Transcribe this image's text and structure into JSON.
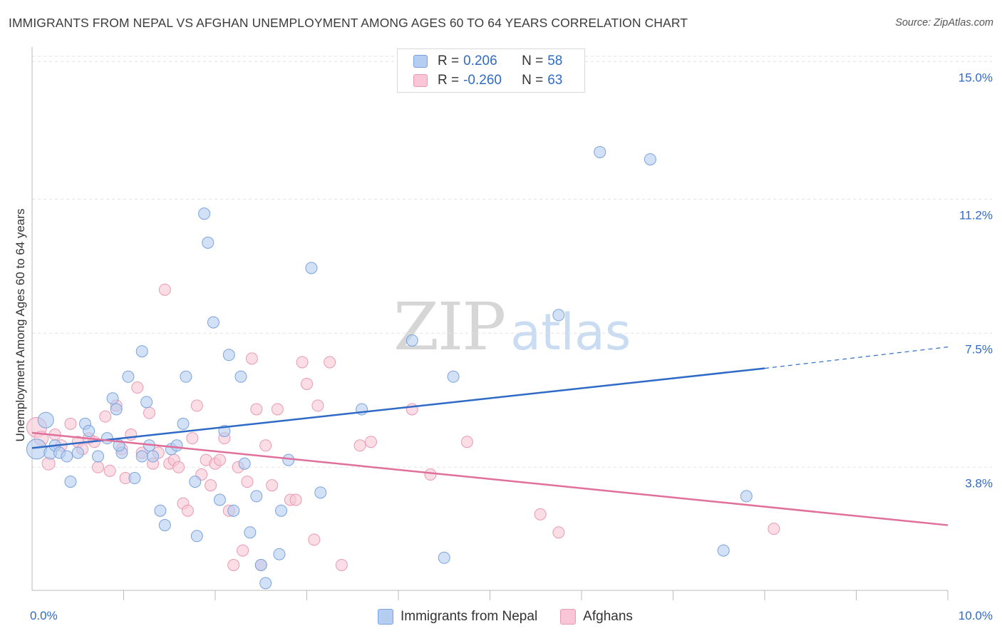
{
  "title": "IMMIGRANTS FROM NEPAL VS AFGHAN UNEMPLOYMENT AMONG AGES 60 TO 64 YEARS CORRELATION CHART",
  "source": "Source: ZipAtlas.com",
  "watermark": {
    "zip": "ZIP",
    "atlas": "atlas"
  },
  "legend_top": [
    {
      "r_label": "R =",
      "r_value": "0.206",
      "n_label": "N =",
      "n_value": "58"
    },
    {
      "r_label": "R =",
      "r_value": "-0.260",
      "n_label": "N =",
      "n_value": "63"
    }
  ],
  "legend_bottom": [
    "Immigrants from Nepal",
    "Afghans"
  ],
  "colors": {
    "nepal_fill": "#b4cdf0",
    "nepal_stroke": "#7aa3dd",
    "nepal_line": "#2f6bc6",
    "afghan_fill": "#f8c6d6",
    "afghan_stroke": "#e89ab4",
    "afghan_line": "#e0709a",
    "tick_label": "#2f6bc6",
    "grid": "#e3e3e3"
  },
  "chart_data": {
    "type": "scatter",
    "title": "IMMIGRANTS FROM NEPAL VS AFGHAN UNEMPLOYMENT AMONG AGES 60 TO 64 YEARS CORRELATION CHART",
    "xlabel": "",
    "ylabel": "Unemployment Among Ages 60 to 64 years",
    "xlim": [
      0,
      10
    ],
    "ylim": [
      0.4,
      15.4
    ],
    "x_tick_labels": [
      {
        "value": 0,
        "label": "0.0%"
      },
      {
        "value": 10,
        "label": "10.0%"
      }
    ],
    "y_ticks": [
      {
        "value": 3.8,
        "label": "3.8%"
      },
      {
        "value": 7.5,
        "label": "7.5%"
      },
      {
        "value": 11.2,
        "label": "11.2%"
      },
      {
        "value": 15.0,
        "label": "15.0%"
      }
    ],
    "x_minor_ticks": [
      1,
      2,
      3,
      4,
      5,
      6,
      7,
      8,
      9,
      10
    ],
    "series": [
      {
        "name": "Immigrants from Nepal",
        "r": 0.206,
        "n": 58,
        "trend": {
          "x0": 0,
          "y0": 4.33,
          "x1": 8,
          "y1": 6.53,
          "dash_to_x": 10,
          "dash_to_y": 7.12
        },
        "points": [
          [
            0.05,
            4.3,
            14
          ],
          [
            0.15,
            5.1,
            11
          ],
          [
            0.2,
            4.2,
            9
          ],
          [
            0.25,
            4.4,
            8
          ],
          [
            0.3,
            4.2,
            8
          ],
          [
            0.38,
            4.1,
            8
          ],
          [
            0.42,
            3.4,
            8
          ],
          [
            0.5,
            4.2,
            8
          ],
          [
            0.58,
            5.0,
            8
          ],
          [
            0.62,
            4.8,
            8
          ],
          [
            0.72,
            4.1,
            8
          ],
          [
            0.82,
            4.6,
            8
          ],
          [
            0.88,
            5.7,
            8
          ],
          [
            0.92,
            5.4,
            8
          ],
          [
            0.98,
            4.2,
            8
          ],
          [
            1.05,
            6.3,
            8
          ],
          [
            1.12,
            3.5,
            8
          ],
          [
            1.2,
            7.0,
            8
          ],
          [
            1.25,
            5.6,
            8
          ],
          [
            1.28,
            4.4,
            8
          ],
          [
            1.32,
            4.1,
            8
          ],
          [
            1.4,
            2.6,
            8
          ],
          [
            1.45,
            2.2,
            8
          ],
          [
            1.52,
            4.3,
            8
          ],
          [
            1.58,
            4.4,
            8
          ],
          [
            1.65,
            5.0,
            8
          ],
          [
            1.68,
            6.3,
            8
          ],
          [
            1.78,
            3.4,
            8
          ],
          [
            1.8,
            1.9,
            8
          ],
          [
            1.88,
            10.8,
            8
          ],
          [
            1.92,
            10.0,
            8
          ],
          [
            1.98,
            7.8,
            8
          ],
          [
            2.05,
            2.9,
            8
          ],
          [
            2.15,
            6.9,
            8
          ],
          [
            2.1,
            4.8,
            8
          ],
          [
            2.2,
            2.6,
            8
          ],
          [
            2.28,
            6.3,
            8
          ],
          [
            2.32,
            3.9,
            8
          ],
          [
            2.38,
            2.0,
            8
          ],
          [
            2.45,
            3.0,
            8
          ],
          [
            2.5,
            1.1,
            8
          ],
          [
            2.55,
            0.6,
            8
          ],
          [
            2.7,
            1.4,
            8
          ],
          [
            2.72,
            2.6,
            8
          ],
          [
            2.8,
            4.0,
            8
          ],
          [
            3.05,
            9.3,
            8
          ],
          [
            3.15,
            3.1,
            8
          ],
          [
            3.6,
            5.4,
            8
          ],
          [
            4.15,
            7.3,
            8
          ],
          [
            4.5,
            1.3,
            8
          ],
          [
            4.6,
            6.3,
            8
          ],
          [
            5.75,
            8.0,
            8
          ],
          [
            6.2,
            12.5,
            8
          ],
          [
            6.75,
            12.3,
            8
          ],
          [
            7.55,
            1.5,
            8
          ],
          [
            7.8,
            3.0,
            8
          ],
          [
            1.2,
            4.1,
            8
          ],
          [
            0.95,
            4.4,
            8
          ]
        ]
      },
      {
        "name": "Afghans",
        "r": -0.26,
        "n": 63,
        "trend": {
          "x0": 0,
          "y0": 4.75,
          "x1": 10,
          "y1": 2.2
        },
        "points": [
          [
            0.05,
            4.9,
            14
          ],
          [
            0.1,
            4.6,
            10
          ],
          [
            0.18,
            3.9,
            9
          ],
          [
            0.25,
            4.7,
            8
          ],
          [
            0.32,
            4.4,
            8
          ],
          [
            0.42,
            5.0,
            8
          ],
          [
            0.5,
            4.5,
            8
          ],
          [
            0.55,
            4.3,
            8
          ],
          [
            0.62,
            4.6,
            8
          ],
          [
            0.68,
            4.5,
            8
          ],
          [
            0.72,
            3.8,
            8
          ],
          [
            0.8,
            5.2,
            8
          ],
          [
            0.85,
            3.7,
            8
          ],
          [
            0.92,
            5.5,
            8
          ],
          [
            0.98,
            4.3,
            8
          ],
          [
            1.02,
            3.5,
            8
          ],
          [
            1.08,
            4.7,
            8
          ],
          [
            1.15,
            6.0,
            8
          ],
          [
            1.2,
            4.2,
            8
          ],
          [
            1.28,
            5.3,
            8
          ],
          [
            1.32,
            3.9,
            8
          ],
          [
            1.38,
            4.2,
            8
          ],
          [
            1.45,
            8.7,
            8
          ],
          [
            1.5,
            3.9,
            8
          ],
          [
            1.55,
            4.0,
            8
          ],
          [
            1.6,
            3.8,
            8
          ],
          [
            1.65,
            2.8,
            8
          ],
          [
            1.7,
            2.6,
            8
          ],
          [
            1.75,
            4.6,
            8
          ],
          [
            1.8,
            5.5,
            8
          ],
          [
            1.85,
            3.6,
            8
          ],
          [
            1.9,
            4.0,
            8
          ],
          [
            1.95,
            3.3,
            8
          ],
          [
            2.0,
            3.9,
            8
          ],
          [
            2.05,
            4.0,
            8
          ],
          [
            2.1,
            4.6,
            8
          ],
          [
            2.15,
            2.6,
            8
          ],
          [
            2.2,
            1.1,
            8
          ],
          [
            2.25,
            3.8,
            8
          ],
          [
            2.3,
            1.5,
            8
          ],
          [
            2.35,
            3.4,
            8
          ],
          [
            2.4,
            6.8,
            8
          ],
          [
            2.45,
            5.4,
            8
          ],
          [
            2.5,
            1.1,
            8
          ],
          [
            2.55,
            4.4,
            8
          ],
          [
            2.62,
            3.3,
            8
          ],
          [
            2.68,
            5.4,
            8
          ],
          [
            2.82,
            2.9,
            8
          ],
          [
            2.88,
            2.9,
            8
          ],
          [
            2.95,
            6.7,
            8
          ],
          [
            3.0,
            6.1,
            8
          ],
          [
            3.08,
            1.8,
            8
          ],
          [
            3.12,
            5.5,
            8
          ],
          [
            3.25,
            6.7,
            8
          ],
          [
            3.38,
            1.1,
            8
          ],
          [
            3.58,
            4.4,
            8
          ],
          [
            3.7,
            4.5,
            8
          ],
          [
            4.15,
            5.4,
            8
          ],
          [
            4.35,
            3.6,
            8
          ],
          [
            4.75,
            4.5,
            8
          ],
          [
            5.55,
            2.5,
            8
          ],
          [
            5.75,
            2.0,
            8
          ],
          [
            8.1,
            2.1,
            8
          ]
        ]
      }
    ]
  }
}
